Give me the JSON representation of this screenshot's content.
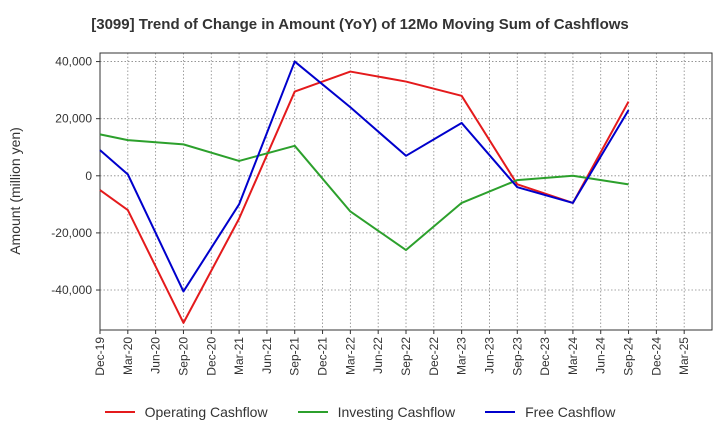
{
  "chart_data": {
    "type": "line",
    "title": "[3099]  Trend of Change in Amount (YoY) of 12Mo Moving Sum of Cashflows",
    "xlabel": "",
    "ylabel": "Amount (million yen)",
    "ylim": [
      -54000,
      43000
    ],
    "yticks": [
      40000,
      20000,
      0,
      -20000,
      -40000
    ],
    "ytick_labels": [
      "40,000",
      "20,000",
      "0",
      "-20,000",
      "-40,000"
    ],
    "categories": [
      "Dec-19",
      "Mar-20",
      "Jun-20",
      "Sep-20",
      "Dec-20",
      "Mar-21",
      "Jun-21",
      "Sep-21",
      "Dec-21",
      "Mar-22",
      "Jun-22",
      "Sep-22",
      "Dec-22",
      "Mar-23",
      "Jun-23",
      "Sep-23",
      "Dec-23",
      "Mar-24",
      "Jun-24",
      "Sep-24",
      "Dec-24",
      "Mar-25"
    ],
    "grid": true,
    "legend_position": "bottom",
    "series": [
      {
        "name": "Operating Cashflow",
        "color": "#e41a1c",
        "values": [
          -5000,
          -12000,
          null,
          -51500,
          null,
          -15000,
          null,
          29500,
          null,
          36500,
          null,
          33000,
          null,
          28000,
          null,
          -3000,
          null,
          -9500,
          null,
          26000,
          null,
          null
        ]
      },
      {
        "name": "Investing Cashflow",
        "color": "#2ca02c",
        "values": [
          14500,
          12500,
          null,
          11000,
          null,
          5200,
          null,
          10500,
          null,
          -12500,
          null,
          -26000,
          null,
          -9500,
          null,
          -1500,
          null,
          0,
          null,
          -3000,
          null,
          null
        ]
      },
      {
        "name": "Free Cashflow",
        "color": "#0000cc",
        "values": [
          9000,
          500,
          null,
          -40500,
          null,
          -10000,
          null,
          40000,
          null,
          24000,
          null,
          7000,
          null,
          18500,
          null,
          -4000,
          null,
          -9500,
          null,
          23000,
          null,
          null
        ]
      }
    ]
  }
}
